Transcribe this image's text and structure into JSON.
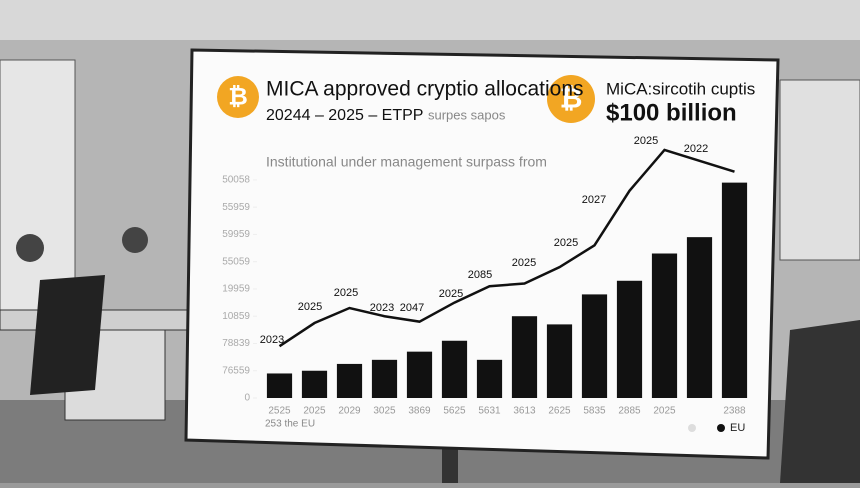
{
  "chart_data": {
    "type": "bar",
    "title": "MICA approved cryptio allocations",
    "subtitle": "20244  – 2025 – ETPP",
    "subtitle_note": "surpes sapos",
    "side_title": "MiCA:sircotih cuptis",
    "side_value": "$100 billion",
    "caption": "Institutional under management surpass from",
    "footnote": "253 the EU",
    "categories": [
      "2525",
      "2025",
      "2029",
      "3025",
      "3869",
      "5625",
      "5631",
      "3613",
      "2625",
      "5835",
      "2885",
      "2025",
      null,
      "2388"
    ],
    "series": [
      {
        "name": "EU",
        "color": "#111111",
        "values": [
          0.9,
          1.0,
          1.25,
          1.4,
          1.7,
          2.1,
          1.4,
          3.0,
          2.7,
          3.8,
          4.3,
          5.3,
          5.9,
          7.9
        ]
      }
    ],
    "line": {
      "color": "#111111",
      "values": [
        1.9,
        2.75,
        3.3,
        3.0,
        2.8,
        3.5,
        4.1,
        4.2,
        4.8,
        5.6,
        7.6,
        9.1,
        8.7,
        8.3
      ]
    },
    "annotations": [
      "2023",
      "2025",
      "2025",
      "2023",
      "2047",
      "2025",
      "2085",
      "2025",
      "2025",
      "2027",
      "2025",
      "2022"
    ],
    "ylim": [
      0,
      9.5
    ],
    "yticks": [
      0,
      {
        "value": 1,
        "label": "76559"
      },
      {
        "value": 2,
        "label": "78839"
      },
      {
        "value": 3,
        "label": "10859"
      },
      {
        "value": 4,
        "label": "19959"
      },
      {
        "value": 5,
        "label": "55059"
      },
      {
        "value": 6,
        "label": "59959"
      },
      {
        "value": 7,
        "label": "55959"
      },
      {
        "value": 8,
        "label": "50058"
      }
    ],
    "legend": "bottom-right"
  }
}
